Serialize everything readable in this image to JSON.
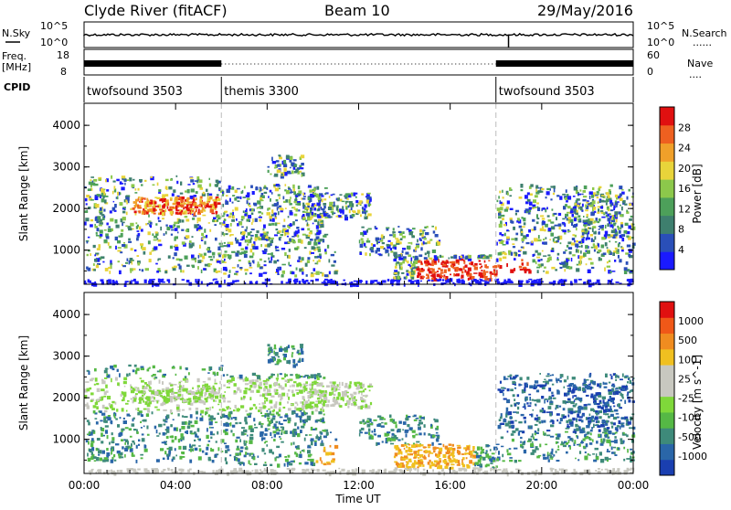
{
  "header": {
    "station": "Clyde River (fitACF)",
    "beam": "Beam 10",
    "date": "29/May/2016"
  },
  "sidebar_labels": {
    "nsky": "N.Sky",
    "nsearch": "N.Search",
    "freq": "Freq.",
    "freq_unit": "[MHz]",
    "nave": "Nave",
    "cpid": "CPID",
    "dots": "......",
    "dots_short": "...."
  },
  "noise_axes": {
    "left_top": "10^5",
    "left_bottom": "10^0",
    "right_top": "10^5",
    "right_bottom": "10^0"
  },
  "freq_axes": {
    "left_ticks": [
      "18",
      "8"
    ],
    "right_ticks": [
      "60",
      "0"
    ]
  },
  "cpid_segments": [
    {
      "label": "twofsound 3503",
      "start_hour": 0
    },
    {
      "label": "themis 3300",
      "start_hour": 6
    },
    {
      "label": "twofsound 3503",
      "start_hour": 18
    }
  ],
  "chart_data": [
    {
      "type": "heatmap",
      "variable": "power",
      "ylabel": "Slant Range [km]",
      "y_ticks": [
        "4000",
        "3000",
        "2000",
        "1000"
      ],
      "ylim": [
        180,
        4530
      ],
      "xlim": [
        0,
        24
      ],
      "colorbar": {
        "label": "Power [dB]",
        "ticks": [
          "28",
          "24",
          "20",
          "16",
          "12",
          "8",
          "4"
        ],
        "range": [
          0,
          32
        ],
        "colors": [
          "#1a1aff",
          "#2a4fb8",
          "#3e7f6e",
          "#4da05a",
          "#8cc84b",
          "#e8d43a",
          "#f0a02a",
          "#ee6020",
          "#e01010"
        ]
      }
    },
    {
      "type": "heatmap",
      "variable": "velocity",
      "ylabel": "Slant Range [km]",
      "y_ticks": [
        "4000",
        "3000",
        "2000",
        "1000"
      ],
      "ylim": [
        180,
        4530
      ],
      "xlim": [
        0,
        24
      ],
      "colorbar": {
        "label": "Velocity [m s^-1]",
        "ticks": [
          "1000",
          "500",
          "100",
          "25",
          "-25",
          "-100",
          "-500",
          "-1000"
        ],
        "colors": [
          "#1a3fb0",
          "#2a66a8",
          "#3e8a7a",
          "#55b845",
          "#7fd83a",
          "#c8c8c0",
          "#c8c8c0",
          "#f0c020",
          "#f08c20",
          "#f05818",
          "#e01010"
        ]
      }
    }
  ],
  "x_axis": {
    "ticks": [
      "00:00",
      "04:00",
      "08:00",
      "12:00",
      "16:00",
      "20:00",
      "00:00"
    ],
    "label": "Time UT"
  }
}
